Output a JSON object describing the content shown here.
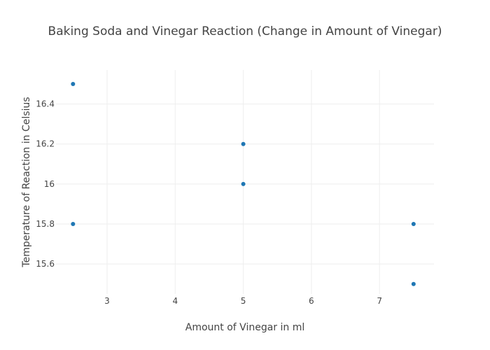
{
  "chart_data": {
    "type": "scatter",
    "title": "Baking Soda and Vinegar Reaction (Change in Amount of Vinegar)",
    "xlabel": "Amount of Vinegar in ml",
    "ylabel": "Temperature of Reaction in Celsius",
    "xlim": [
      2.25,
      7.8
    ],
    "ylim": [
      15.45,
      16.57
    ],
    "xticks": [
      3,
      4,
      5,
      6,
      7
    ],
    "yticks": [
      15.6,
      15.8,
      16,
      16.2,
      16.4
    ],
    "ytick_labels": [
      "15.6",
      "15.8",
      "16",
      "16.2",
      "16.4"
    ],
    "grid": true,
    "legend": "none",
    "series": [
      {
        "color": "#1f77b4",
        "points": [
          {
            "x": 2.5,
            "y": 16.5
          },
          {
            "x": 2.5,
            "y": 15.8
          },
          {
            "x": 5,
            "y": 16.2
          },
          {
            "x": 5,
            "y": 16.0
          },
          {
            "x": 7.5,
            "y": 15.8
          },
          {
            "x": 7.5,
            "y": 15.5
          }
        ]
      }
    ]
  }
}
